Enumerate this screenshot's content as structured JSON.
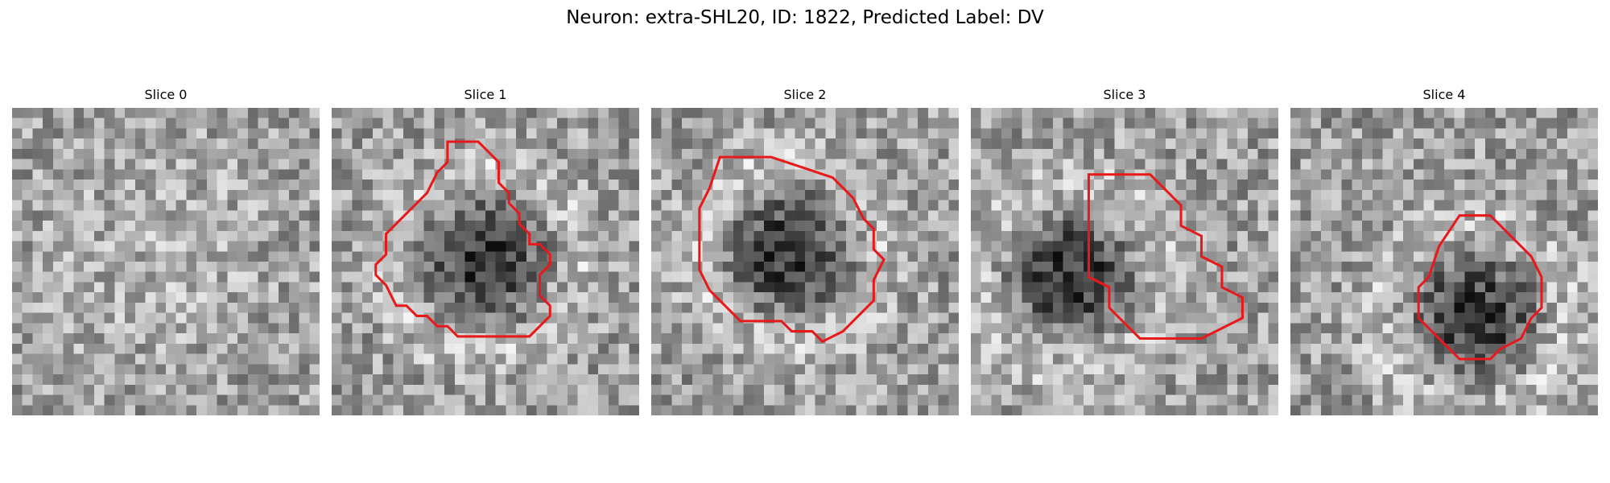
{
  "figure": {
    "title": "Neuron: extra-SHL20, ID: 1822, Predicted Label: DV"
  },
  "colors": {
    "contour": "#e8191b",
    "background": "#ffffff"
  },
  "grid_size": 30,
  "panels": [
    {
      "title": "Slice 0",
      "contour": [],
      "dark_center": null,
      "halo_center": [
        0.48,
        0.47
      ],
      "seed": 11
    },
    {
      "title": "Slice 1",
      "contour": [
        [
          11.3,
          3.3
        ],
        [
          14.3,
          3.3
        ],
        [
          16.3,
          5.3
        ],
        [
          16.3,
          7.3
        ],
        [
          17.3,
          8.3
        ],
        [
          17.3,
          9.3
        ],
        [
          18.3,
          10.3
        ],
        [
          18.3,
          11.3
        ],
        [
          19.3,
          12.3
        ],
        [
          19.3,
          13.3
        ],
        [
          20.3,
          13.3
        ],
        [
          21.3,
          14.3
        ],
        [
          21.3,
          15.3
        ],
        [
          20.3,
          16.3
        ],
        [
          20.3,
          17.3
        ],
        [
          20.3,
          18.3
        ],
        [
          21.3,
          19.3
        ],
        [
          21.3,
          20.3
        ],
        [
          19.3,
          22.3
        ],
        [
          12.3,
          22.3
        ],
        [
          11.3,
          21.3
        ],
        [
          10.3,
          21.3
        ],
        [
          9.3,
          20.3
        ],
        [
          8.3,
          20.3
        ],
        [
          7.3,
          19.3
        ],
        [
          6.3,
          19.3
        ],
        [
          5.3,
          17.3
        ],
        [
          4.3,
          16.3
        ],
        [
          4.3,
          15.3
        ],
        [
          5.3,
          14.3
        ],
        [
          5.3,
          12.3
        ],
        [
          6.3,
          11.3
        ],
        [
          7.3,
          10.3
        ],
        [
          8.3,
          9.3
        ],
        [
          9.3,
          8.3
        ],
        [
          10.3,
          6.3
        ],
        [
          11.3,
          5.3
        ]
      ],
      "dark_center": [
        0.5,
        0.5
      ],
      "seed": 23
    },
    {
      "title": "Slice 2",
      "contour": [
        [
          6.7,
          4.8
        ],
        [
          11.7,
          4.8
        ],
        [
          14.7,
          5.8
        ],
        [
          17.7,
          6.8
        ],
        [
          19.7,
          8.8
        ],
        [
          20.7,
          10.8
        ],
        [
          21.7,
          11.8
        ],
        [
          21.7,
          13.8
        ],
        [
          22.7,
          14.8
        ],
        [
          21.7,
          16.8
        ],
        [
          21.7,
          18.8
        ],
        [
          20.7,
          19.8
        ],
        [
          19.7,
          20.8
        ],
        [
          18.7,
          21.8
        ],
        [
          16.7,
          22.8
        ],
        [
          15.7,
          21.8
        ],
        [
          13.7,
          21.8
        ],
        [
          12.7,
          20.8
        ],
        [
          11.7,
          20.8
        ],
        [
          10.7,
          20.8
        ],
        [
          9.7,
          20.8
        ],
        [
          8.7,
          20.8
        ],
        [
          7.7,
          19.8
        ],
        [
          6.7,
          18.8
        ],
        [
          5.7,
          17.8
        ],
        [
          4.7,
          15.8
        ],
        [
          4.7,
          13.8
        ],
        [
          4.7,
          11.8
        ],
        [
          4.7,
          9.8
        ],
        [
          5.7,
          7.8
        ]
      ],
      "dark_center": [
        0.45,
        0.47
      ],
      "seed": 37
    },
    {
      "title": "Slice 3",
      "contour": [
        [
          11.5,
          6.5
        ],
        [
          17.5,
          6.5
        ],
        [
          20.5,
          9.5
        ],
        [
          20.5,
          11.5
        ],
        [
          22.5,
          12.5
        ],
        [
          22.5,
          14.5
        ],
        [
          24.5,
          15.5
        ],
        [
          24.5,
          17.5
        ],
        [
          26.5,
          18.5
        ],
        [
          26.5,
          20.5
        ],
        [
          22.5,
          22.5
        ],
        [
          16.5,
          22.5
        ],
        [
          15.5,
          21.5
        ],
        [
          14.5,
          20.5
        ],
        [
          13.5,
          19.5
        ],
        [
          13.5,
          17.5
        ],
        [
          11.5,
          16.5
        ],
        [
          11.5,
          14.5
        ],
        [
          11.5,
          11.5
        ],
        [
          11.5,
          9.5
        ]
      ],
      "dark_center": [
        0.33,
        0.55
      ],
      "seed": 51
    },
    {
      "title": "Slice 4",
      "contour": [
        [
          16.5,
          10.5
        ],
        [
          19.5,
          10.5
        ],
        [
          20.5,
          11.5
        ],
        [
          23.5,
          14.5
        ],
        [
          24.5,
          16.5
        ],
        [
          24.5,
          19.5
        ],
        [
          23.5,
          20.5
        ],
        [
          22.5,
          22.5
        ],
        [
          20.5,
          23.5
        ],
        [
          19.5,
          24.5
        ],
        [
          16.5,
          24.5
        ],
        [
          14.5,
          22.5
        ],
        [
          12.5,
          20.5
        ],
        [
          12.5,
          17.5
        ],
        [
          13.5,
          16.5
        ],
        [
          14.5,
          13.5
        ]
      ],
      "dark_center": [
        0.6,
        0.68
      ],
      "seed": 67
    }
  ]
}
